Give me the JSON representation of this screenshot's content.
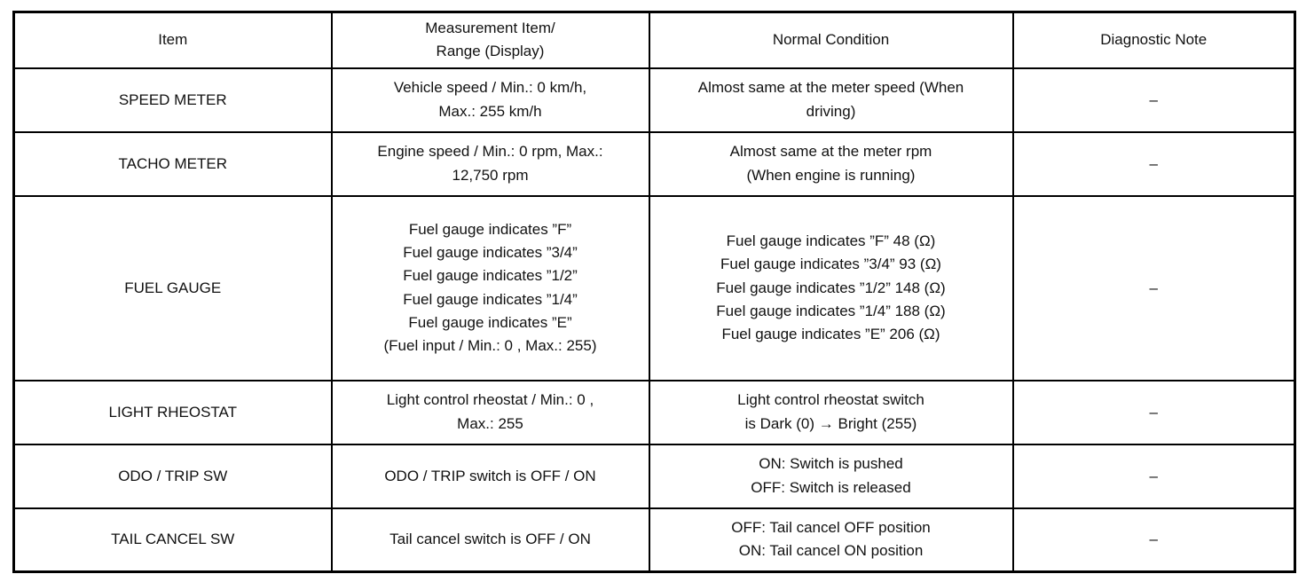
{
  "table": {
    "headers": {
      "item": "Item",
      "measurement": "Measurement Item/\nRange (Display)",
      "normal": "Normal Condition",
      "note": "Diagnostic Note"
    },
    "rows": [
      {
        "item": "SPEED METER",
        "measurement": "Vehicle speed / Min.: 0 km/h,\nMax.: 255 km/h",
        "normal": "Almost same at the meter speed (When\ndriving)",
        "note": "–"
      },
      {
        "item": "TACHO METER",
        "measurement": "Engine speed / Min.: 0 rpm, Max.:\n12,750 rpm",
        "normal": "Almost same at the meter rpm\n(When engine is running)",
        "note": "–"
      },
      {
        "item": "FUEL GAUGE",
        "measurement": "Fuel gauge indicates ”F”\nFuel gauge indicates ”3/4”\nFuel gauge indicates ”1/2”\nFuel gauge indicates ”1/4”\nFuel gauge indicates ”E”\n(Fuel input / Min.: 0 , Max.: 255)",
        "normal": "Fuel gauge indicates ”F” 48 (Ω)\nFuel gauge indicates ”3/4” 93 (Ω)\nFuel gauge indicates ”1/2” 148 (Ω)\nFuel gauge indicates ”1/4” 188 (Ω)\nFuel gauge indicates ”E” 206 (Ω)",
        "note": "–"
      },
      {
        "item": "LIGHT RHEOSTAT",
        "measurement": "Light control rheostat / Min.: 0 ,\nMax.: 255",
        "normal": "Light control rheostat switch\nis Dark (0) → Bright (255)",
        "note": "–"
      },
      {
        "item": "ODO / TRIP SW",
        "measurement": "ODO / TRIP switch is OFF / ON",
        "normal": "ON: Switch is pushed\nOFF: Switch is released",
        "note": "–"
      },
      {
        "item": "TAIL CANCEL SW",
        "measurement": "Tail cancel switch is OFF / ON",
        "normal": "OFF: Tail cancel OFF position\nON: Tail cancel ON position",
        "note": "–"
      }
    ]
  }
}
